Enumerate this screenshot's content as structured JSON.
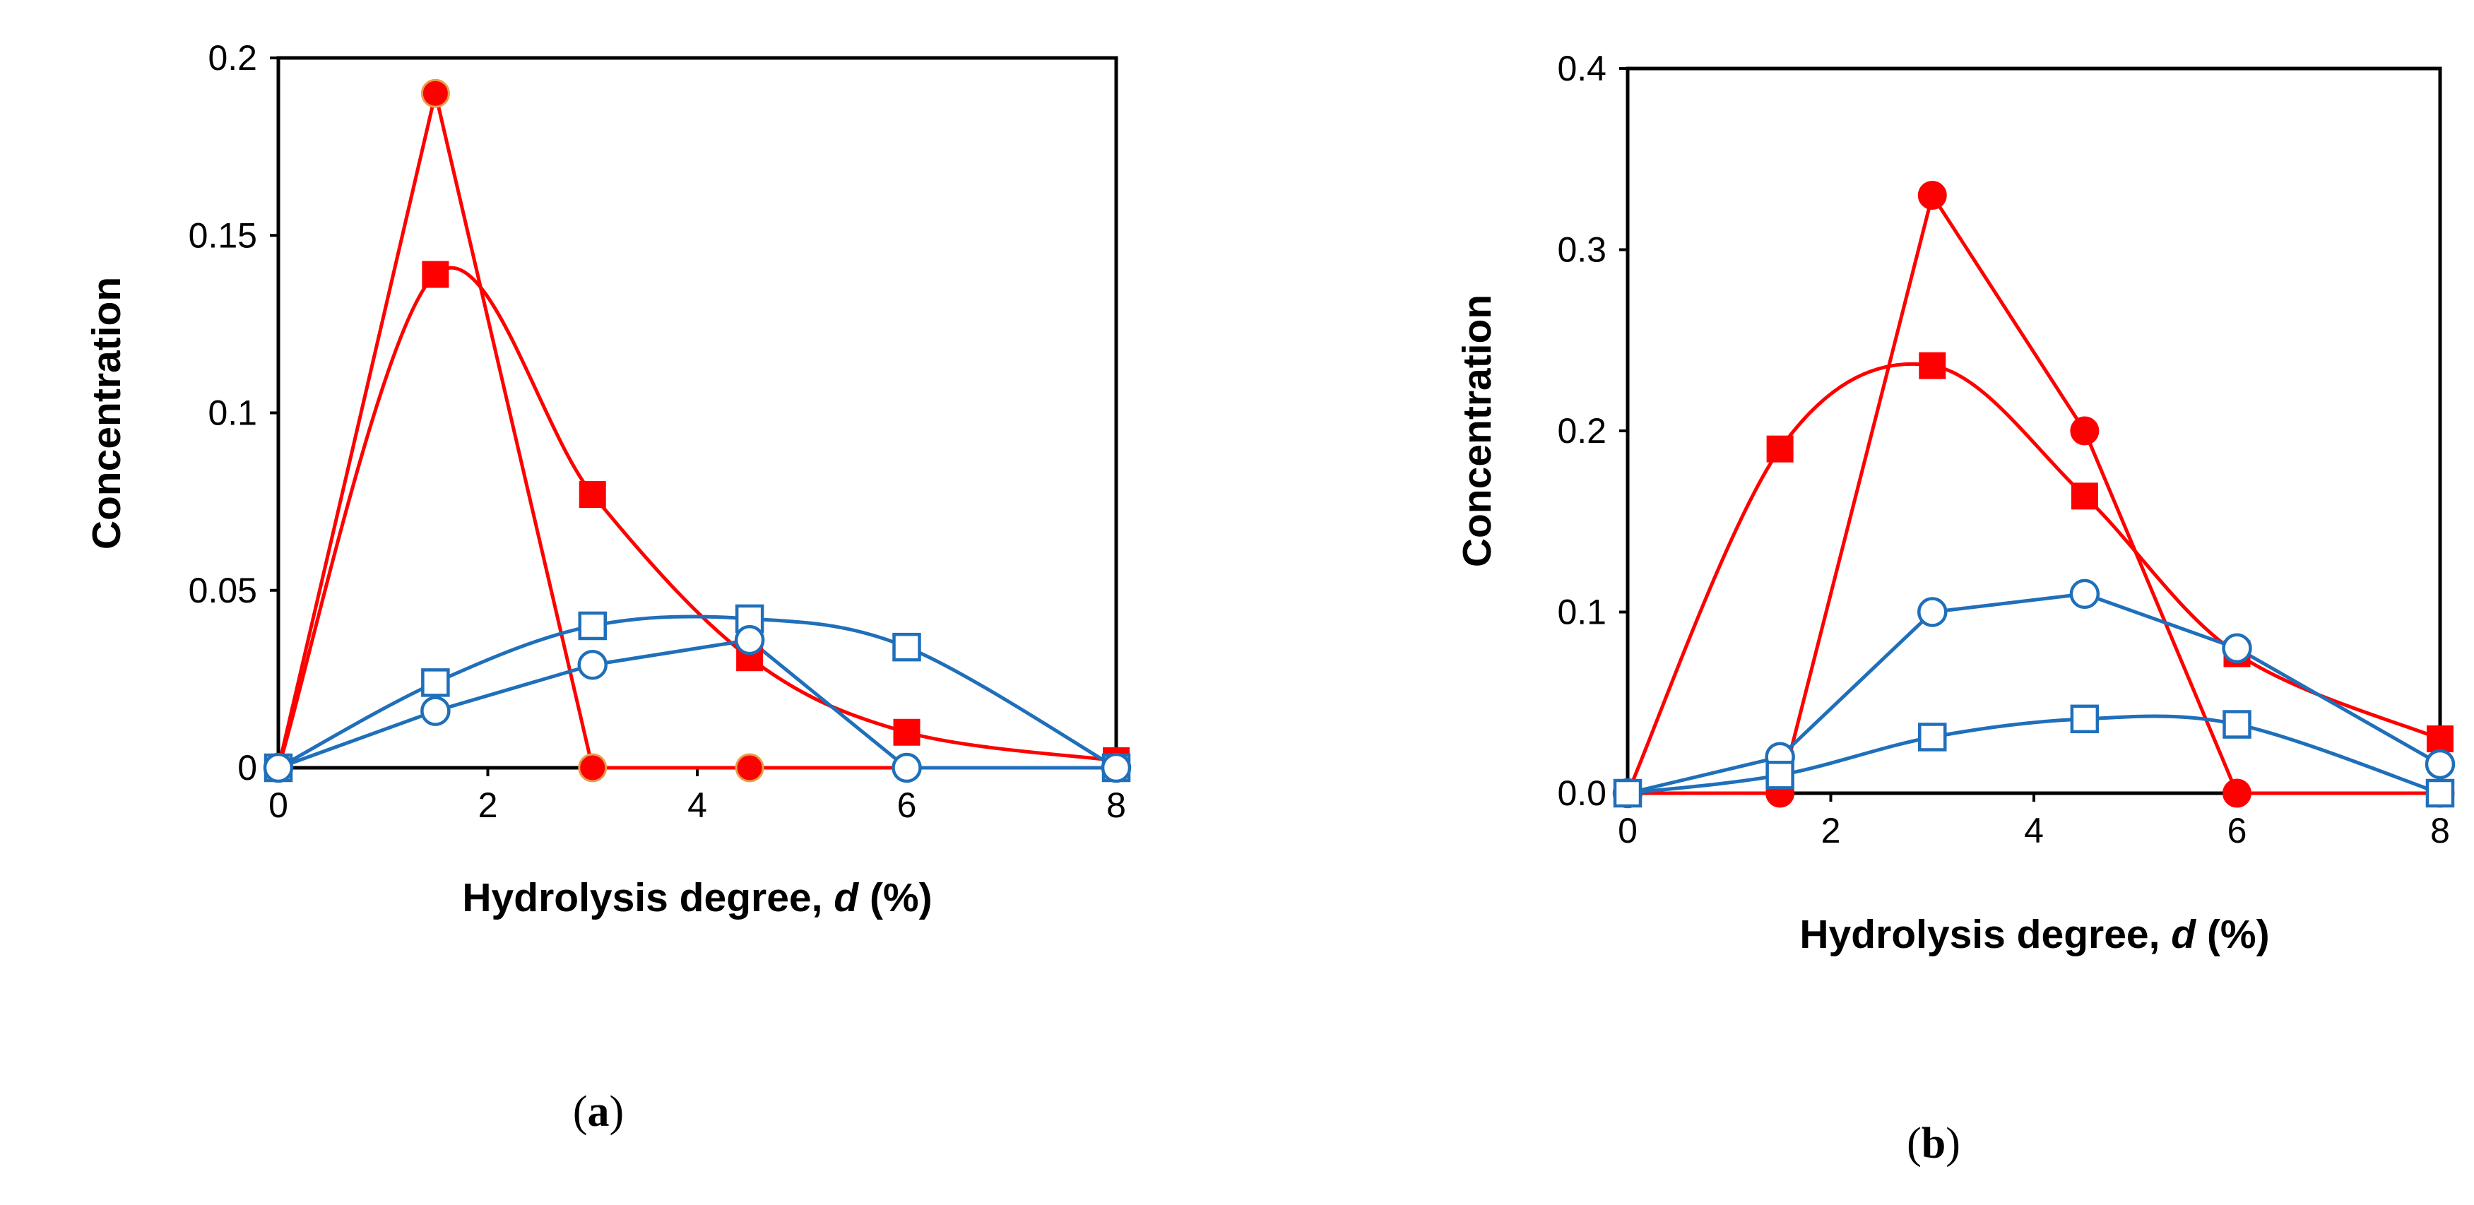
{
  "chart_data": [
    {
      "type": "line",
      "panel_label": "a",
      "xlabel": "Hydrolysis degree, ",
      "xlabel_var": "d",
      "xlabel_unit": " (%)",
      "ylabel": "Concentration",
      "xlim": [
        0,
        8
      ],
      "ylim": [
        0,
        0.2
      ],
      "xticks": [
        0,
        2,
        4,
        6,
        8
      ],
      "yticks": [
        0,
        0.05,
        0.1,
        0.15,
        0.2
      ],
      "ytick_labels": [
        "0",
        "0.05",
        "0.1",
        "0.15",
        "0.2"
      ],
      "xtick_labels": [
        "0",
        "2",
        "4",
        "6",
        "8"
      ],
      "series": [
        {
          "name": "filled-circles",
          "marker": "circle",
          "filled": true,
          "color": "#ff0000",
          "edge": "#e6a04a",
          "smooth": false,
          "x": [
            0,
            1.5,
            3,
            4.5,
            8
          ],
          "y": [
            0,
            0.19,
            0,
            0,
            0
          ]
        },
        {
          "name": "filled-squares",
          "marker": "square",
          "filled": true,
          "color": "#ff0000",
          "edge": "#ff0000",
          "smooth": true,
          "x": [
            0,
            1.5,
            3,
            4.5,
            6,
            8
          ],
          "y": [
            0,
            0.139,
            0.077,
            0.031,
            0.01,
            0.002
          ]
        },
        {
          "name": "open-squares",
          "marker": "square",
          "filled": false,
          "color": "#1f6fba",
          "edge": "#1f6fba",
          "smooth": true,
          "x": [
            0,
            1.5,
            3,
            4.5,
            6,
            8
          ],
          "y": [
            0,
            0.024,
            0.04,
            0.042,
            0.034,
            0
          ]
        },
        {
          "name": "open-circles",
          "marker": "circle",
          "filled": false,
          "color": "#1f6fba",
          "edge": "#1f6fba",
          "smooth": false,
          "x": [
            0,
            1.5,
            3,
            4.5,
            6,
            8
          ],
          "y": [
            0,
            0.016,
            0.029,
            0.036,
            0,
            0
          ]
        }
      ]
    },
    {
      "type": "line",
      "panel_label": "b",
      "xlabel": "Hydrolysis degree, ",
      "xlabel_var": "d",
      "xlabel_unit": " (%)",
      "ylabel": "Concentration",
      "xlim": [
        0,
        8
      ],
      "ylim": [
        0,
        0.4
      ],
      "xticks": [
        0,
        2,
        4,
        6,
        8
      ],
      "yticks": [
        0,
        0.1,
        0.2,
        0.3,
        0.4
      ],
      "ytick_labels": [
        "0.0",
        "0.1",
        "0.2",
        "0.3",
        "0.4"
      ],
      "xtick_labels": [
        "0",
        "2",
        "4",
        "6",
        "8"
      ],
      "series": [
        {
          "name": "filled-circles",
          "marker": "circle",
          "filled": true,
          "color": "#ff0000",
          "edge": "#ff0000",
          "smooth": false,
          "x": [
            0,
            1.5,
            3,
            4.5,
            6,
            8
          ],
          "y": [
            0,
            0,
            0.33,
            0.2,
            0,
            0
          ]
        },
        {
          "name": "filled-squares",
          "marker": "square",
          "filled": true,
          "color": "#ff0000",
          "edge": "#ff0000",
          "smooth": true,
          "x": [
            0,
            1.5,
            3,
            4.5,
            6,
            8
          ],
          "y": [
            0,
            0.19,
            0.236,
            0.164,
            0.077,
            0.03
          ]
        },
        {
          "name": "open-circles",
          "marker": "circle",
          "filled": false,
          "color": "#1f6fba",
          "edge": "#1f6fba",
          "smooth": false,
          "x": [
            0,
            1.5,
            3,
            4.5,
            6,
            8
          ],
          "y": [
            0,
            0.02,
            0.1,
            0.11,
            0.08,
            0.016
          ]
        },
        {
          "name": "open-squares",
          "marker": "square",
          "filled": false,
          "color": "#1f6fba",
          "edge": "#1f6fba",
          "smooth": true,
          "x": [
            0,
            1.5,
            3,
            4.5,
            6,
            8
          ],
          "y": [
            0,
            0.01,
            0.031,
            0.041,
            0.038,
            0
          ]
        }
      ]
    }
  ]
}
